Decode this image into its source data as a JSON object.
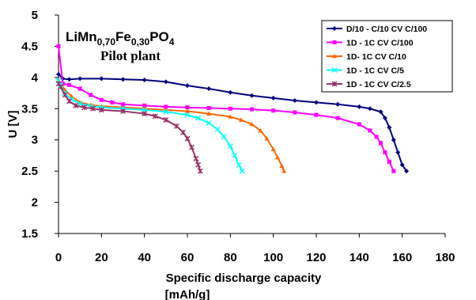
{
  "chart_data": {
    "type": "line",
    "title": "",
    "xlabel_line1": "Specific discharge capacity",
    "xlabel_line2": "[mAh/g]",
    "ylabel": "U [V]",
    "xlim": [
      0,
      180
    ],
    "ylim": [
      1.5,
      5
    ],
    "xticks": [
      "0",
      "20",
      "40",
      "60",
      "80",
      "100",
      "120",
      "140",
      "160",
      "180"
    ],
    "yticks": [
      "1.5",
      "2",
      "2.5",
      "3",
      "3.5",
      "4",
      "4.5",
      "5"
    ],
    "grid": false,
    "legend_position": "top-right",
    "annotation": {
      "formula_parts": [
        {
          "text": "LiMn",
          "sub": false
        },
        {
          "text": "0,70",
          "sub": true
        },
        {
          "text": "Fe",
          "sub": false
        },
        {
          "text": "0,30",
          "sub": true
        },
        {
          "text": "PO",
          "sub": false
        },
        {
          "text": "4",
          "sub": true
        }
      ],
      "subtitle": "Pilot plant"
    },
    "series": [
      {
        "name": "D/10 - C/10 CV C/100",
        "color": "#000080",
        "marker": "diamond",
        "x": [
          0,
          2,
          5,
          10,
          20,
          30,
          40,
          50,
          60,
          70,
          80,
          90,
          100,
          110,
          120,
          130,
          140,
          145,
          150,
          152,
          154,
          156,
          158,
          160,
          162
        ],
        "y": [
          4.05,
          3.98,
          3.97,
          3.98,
          3.98,
          3.97,
          3.96,
          3.93,
          3.87,
          3.82,
          3.76,
          3.71,
          3.67,
          3.63,
          3.6,
          3.57,
          3.53,
          3.5,
          3.45,
          3.35,
          3.2,
          3.0,
          2.8,
          2.6,
          2.5
        ]
      },
      {
        "name": "1D - 1C CV C/100",
        "color": "#ff00ff",
        "marker": "square",
        "x": [
          0,
          2,
          5,
          10,
          15,
          20,
          25,
          30,
          40,
          50,
          60,
          70,
          80,
          90,
          100,
          110,
          120,
          130,
          140,
          145,
          148,
          150,
          152,
          154,
          156
        ],
        "y": [
          4.5,
          3.9,
          3.88,
          3.82,
          3.72,
          3.64,
          3.6,
          3.57,
          3.55,
          3.53,
          3.52,
          3.51,
          3.5,
          3.49,
          3.47,
          3.44,
          3.4,
          3.35,
          3.25,
          3.15,
          3.05,
          2.95,
          2.8,
          2.65,
          2.5
        ]
      },
      {
        "name": "1D- 1C CV C/10",
        "color": "#ff6600",
        "marker": "triangle",
        "x": [
          0,
          1,
          3,
          6,
          10,
          15,
          20,
          30,
          40,
          50,
          60,
          70,
          80,
          85,
          90,
          94,
          97,
          100,
          102,
          104,
          105
        ],
        "y": [
          3.95,
          3.9,
          3.8,
          3.7,
          3.6,
          3.56,
          3.54,
          3.52,
          3.5,
          3.48,
          3.46,
          3.42,
          3.37,
          3.32,
          3.25,
          3.15,
          3.02,
          2.85,
          2.72,
          2.58,
          2.5
        ]
      },
      {
        "name": "1D - 1C CV C/5",
        "color": "#00ffff",
        "marker": "x",
        "x": [
          0,
          1,
          3,
          6,
          10,
          15,
          20,
          30,
          40,
          50,
          60,
          65,
          70,
          74,
          77,
          80,
          82,
          84,
          85.5
        ],
        "y": [
          3.95,
          3.88,
          3.75,
          3.65,
          3.58,
          3.54,
          3.52,
          3.5,
          3.48,
          3.45,
          3.4,
          3.35,
          3.27,
          3.17,
          3.05,
          2.9,
          2.75,
          2.6,
          2.5
        ]
      },
      {
        "name": "1D - 1C CV C/2.5",
        "color": "#993366",
        "marker": "star",
        "x": [
          0,
          1,
          3,
          5,
          8,
          12,
          16,
          20,
          30,
          40,
          45,
          50,
          55,
          58,
          60,
          62,
          64,
          65,
          66
        ],
        "y": [
          3.9,
          3.85,
          3.72,
          3.62,
          3.55,
          3.52,
          3.5,
          3.48,
          3.46,
          3.42,
          3.38,
          3.32,
          3.22,
          3.12,
          3.02,
          2.88,
          2.7,
          2.6,
          2.5
        ]
      }
    ]
  }
}
